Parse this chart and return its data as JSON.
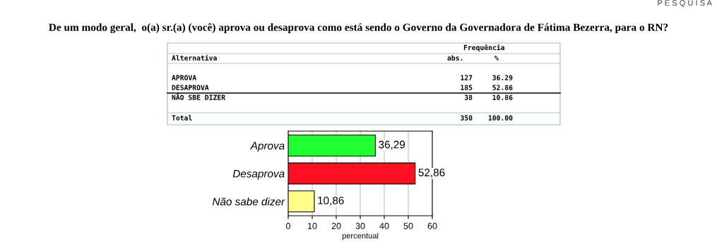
{
  "chart_data": {
    "type": "bar",
    "orientation": "horizontal",
    "title": "De um modo geral,  o(a) sr.(a) (você) aprova ou desaprova como está sendo o Governo da Governadora de Fátima Bezerra, para o RN?",
    "categories": [
      "Aprova",
      "Desaprova",
      "Não sabe dizer"
    ],
    "values": [
      36.29,
      52.86,
      10.86
    ],
    "colors": [
      "#22ff33",
      "#ff1020",
      "#ffff88"
    ],
    "value_labels": [
      "36,29",
      "52,86",
      "10,86"
    ],
    "xlim": [
      0,
      60
    ],
    "xticks": [
      0,
      10,
      20,
      30,
      40,
      50,
      60
    ],
    "xlabel": "percentual",
    "grid": "x",
    "annotations": [
      "Frequência",
      "Alternativa",
      "abs.",
      "%",
      "APROVA",
      "127",
      "36.29",
      "DESAPROVA",
      "185",
      "52.86",
      "NÃO SBE DIZER",
      "38",
      "10.86",
      "Total",
      "350",
      "100.00",
      "P E S Q U I S A"
    ]
  }
}
